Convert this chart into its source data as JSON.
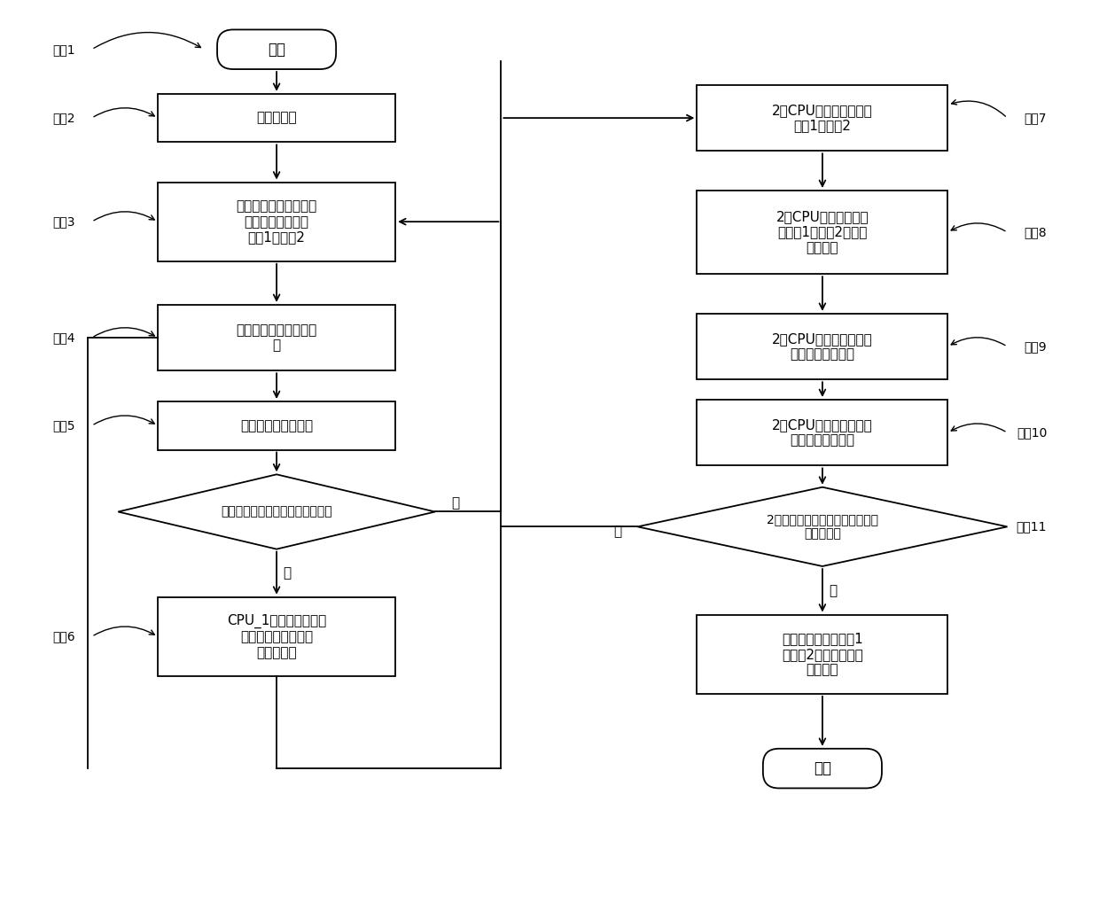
{
  "bg_color": "#ffffff",
  "line_color": "#000000",
  "text_color": "#000000",
  "box_fill": "#ffffff",
  "font_size": 11,
  "start_text": "开始",
  "end_text": "结束",
  "left_flow": [
    {
      "id": "b1",
      "type": "rect",
      "text": "模块初始化"
    },
    {
      "id": "b2",
      "type": "rect",
      "text": "设置命令为不输出，关\n闭模拟量输出开关\n开关1和开关2"
    },
    {
      "id": "b3",
      "type": "rect",
      "text": "模块对自身状态进行自\n检"
    },
    {
      "id": "b4",
      "type": "rect",
      "text": "通过总线与主机通信"
    },
    {
      "id": "b5",
      "type": "diamond",
      "text": "根据命令判断自已是否为主模块？"
    },
    {
      "id": "b6",
      "type": "rect",
      "text": "CPU_1根据命令控制数\n模转换模块输出电压\n值、电流值"
    }
  ],
  "right_flow": [
    {
      "id": "r1",
      "type": "rect",
      "text": "2个CPU打开模拟量输出\n开关1和开关2"
    },
    {
      "id": "r2",
      "type": "rect",
      "text": "2个CPU通过回采模块\n（采集1和采集2）采集\n输出状态"
    },
    {
      "id": "r3",
      "type": "rect",
      "text": "2个CPU向对方互相发送\n自己回采到的状态"
    },
    {
      "id": "r4",
      "type": "rect",
      "text": "2个CPU回采到的输出状\n态与命令进行比较"
    },
    {
      "id": "r5",
      "type": "diamond",
      "text": "2个回采模块采集到的输出状态与\n命令一致？"
    },
    {
      "id": "r6",
      "type": "rect",
      "text": "关闭模拟量输出开关1\n和开关2，向主机发送\n故障信息"
    }
  ],
  "yes_text": "是",
  "no_text": "否",
  "step_labels_left": [
    "步骤1",
    "步骤2",
    "步骤3",
    "步骤4",
    "步骤5",
    "步骤6"
  ],
  "step_labels_right": [
    "步骤7",
    "步骤8",
    "步骤9",
    "步骤10",
    "步骤11"
  ]
}
